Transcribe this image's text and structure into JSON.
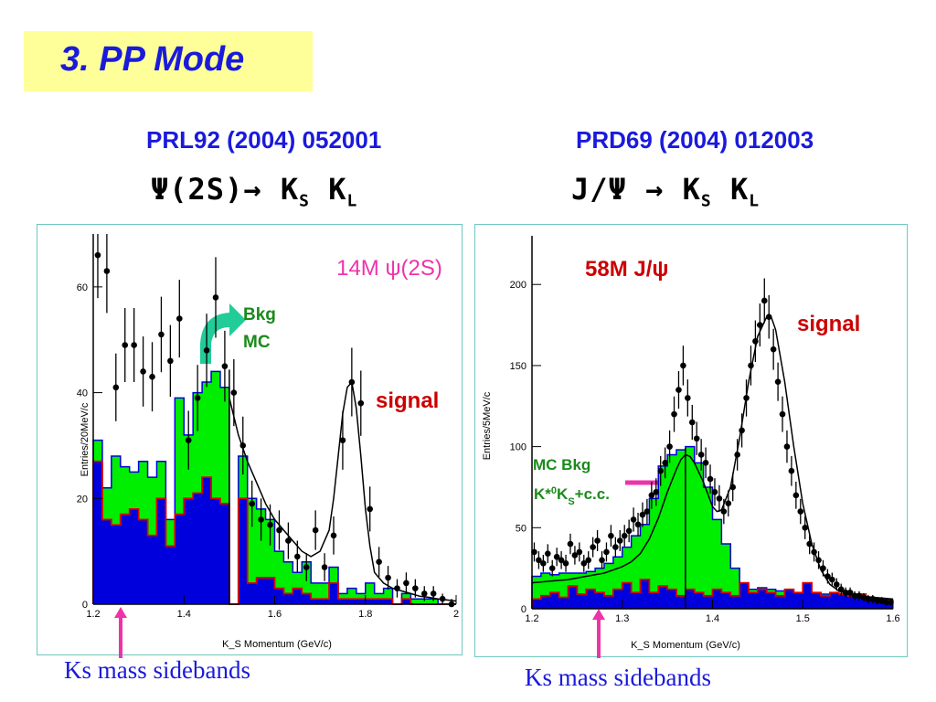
{
  "slide": {
    "title": "3. PP Mode",
    "left_ref": "PRL92 (2004) 052001",
    "right_ref": "PRD69 (2004) 012003",
    "left_decay": {
      "parent": "Ψ(2S)",
      "arrow": "→",
      "k1": "K",
      "s1": "S",
      "k2": "K",
      "s2": "L"
    },
    "right_decay": {
      "parent": "J/Ψ",
      "arrow": "→",
      "k1": "K",
      "s1": "S",
      "k2": "K",
      "s2": "L"
    },
    "left_sidebands": "Ks mass sidebands",
    "right_sidebands": "Ks mass sidebands"
  },
  "colors": {
    "title_bg": "#ffff99",
    "title_text": "#1a1adc",
    "green": "#00ee00",
    "blue": "#0000dd",
    "red": "#dd0000",
    "magenta": "#ee33aa",
    "teal_arrow": "#22cc99"
  },
  "chart_data": [
    {
      "type": "histogram",
      "xlabel": "K_S Momentum (GeV/c)",
      "ylabel": "Entries/20MeV/c",
      "xlim": [
        1.2,
        2.0
      ],
      "ylim": [
        0,
        70
      ],
      "xticks": [
        "1.2",
        "1.4",
        "1.6",
        "1.8",
        "2"
      ],
      "yticks": [
        "0",
        "20",
        "40",
        "60"
      ],
      "annotations": {
        "sample": "14M ψ(2S)",
        "bkg_line1": "Bkg",
        "bkg_line2": "MC",
        "signal": "signal"
      },
      "bin_edges": [
        1.2,
        1.22,
        1.24,
        1.26,
        1.28,
        1.3,
        1.32,
        1.34,
        1.36,
        1.38,
        1.4,
        1.42,
        1.44,
        1.46,
        1.48,
        1.5,
        1.52,
        1.54,
        1.56,
        1.58,
        1.6,
        1.62,
        1.64,
        1.66,
        1.68,
        1.7,
        1.72,
        1.74,
        1.76,
        1.78,
        1.8,
        1.82,
        1.84,
        1.86,
        1.88,
        1.9,
        1.92,
        1.94,
        1.96,
        1.98,
        2.0
      ],
      "green_mc": [
        31,
        22,
        28,
        26,
        25,
        27,
        24,
        27,
        16,
        39,
        32,
        40,
        42,
        44,
        41,
        0,
        28,
        20,
        18,
        16,
        10,
        8,
        6,
        8,
        4,
        4,
        7,
        2,
        3,
        2,
        4,
        2,
        3,
        0,
        2,
        1,
        1,
        1,
        0,
        0
      ],
      "blue_mc": [
        27,
        16,
        15,
        17,
        18,
        16,
        13,
        20,
        11,
        17,
        20,
        21,
        24,
        20,
        19,
        0,
        20,
        4,
        5,
        5,
        3,
        2,
        3,
        2,
        1,
        1,
        4,
        1,
        1,
        1,
        1,
        1,
        1,
        0,
        1,
        0,
        0,
        0,
        0,
        0
      ],
      "data_points": {
        "x": [
          1.21,
          1.23,
          1.25,
          1.27,
          1.29,
          1.31,
          1.33,
          1.35,
          1.37,
          1.39,
          1.41,
          1.43,
          1.45,
          1.47,
          1.49,
          1.51,
          1.53,
          1.55,
          1.57,
          1.59,
          1.61,
          1.63,
          1.65,
          1.67,
          1.69,
          1.71,
          1.73,
          1.75,
          1.77,
          1.79,
          1.81,
          1.83,
          1.85,
          1.87,
          1.89,
          1.91,
          1.93,
          1.95,
          1.97,
          1.99
        ],
        "y": [
          66,
          63,
          41,
          49,
          49,
          44,
          43,
          51,
          46,
          54,
          31,
          39,
          48,
          58,
          45,
          40,
          30,
          19,
          16,
          15,
          14,
          12,
          9,
          7,
          14,
          7,
          13,
          31,
          42,
          38,
          18,
          8,
          5,
          3,
          4,
          3,
          2,
          2,
          1,
          0
        ]
      },
      "fit_curve": {
        "x": [
          1.5,
          1.52,
          1.54,
          1.56,
          1.58,
          1.6,
          1.62,
          1.64,
          1.66,
          1.68,
          1.7,
          1.72,
          1.73,
          1.74,
          1.75,
          1.76,
          1.77,
          1.78,
          1.79,
          1.8,
          1.81,
          1.82,
          1.84,
          1.86,
          1.88,
          1.9,
          1.92,
          1.94,
          1.96,
          1.98,
          2.0
        ],
        "y": [
          39,
          32,
          27,
          23,
          19,
          16,
          14,
          12,
          10,
          9,
          10,
          14,
          20,
          28,
          36,
          41,
          42,
          37,
          28,
          18,
          11,
          6,
          4,
          3,
          2.5,
          2,
          1.5,
          1.3,
          1,
          0.8,
          0.6
        ]
      },
      "vertical_line_x": 1.5
    },
    {
      "type": "histogram",
      "xlabel": "K_S Momentum (GeV/c)",
      "ylabel": "Entries/5MeV/c",
      "xlim": [
        1.2,
        1.6
      ],
      "ylim": [
        0,
        230
      ],
      "xticks": [
        "1.2",
        "1.3",
        "1.4",
        "1.5",
        "1.6"
      ],
      "yticks": [
        "0",
        "50",
        "100",
        "150",
        "200"
      ],
      "annotations": {
        "sample": "58M J/ψ",
        "mc_line1": "MC Bkg",
        "mc_line2_main": "K*",
        "mc_line2_sup": "0",
        "mc_line2_k": "K",
        "mc_line2_sub": "S",
        "mc_line2_end": "+c.c.",
        "signal": "signal"
      },
      "bin_edges": [
        1.2,
        1.21,
        1.22,
        1.23,
        1.24,
        1.25,
        1.26,
        1.27,
        1.28,
        1.29,
        1.3,
        1.31,
        1.32,
        1.33,
        1.34,
        1.35,
        1.36,
        1.37,
        1.38,
        1.39,
        1.4,
        1.41,
        1.42,
        1.43,
        1.44,
        1.45,
        1.46,
        1.47,
        1.48,
        1.49,
        1.5,
        1.51,
        1.52,
        1.53,
        1.54,
        1.55,
        1.56,
        1.57,
        1.58,
        1.59,
        1.6
      ],
      "green_mc": [
        20,
        22,
        21,
        22,
        22,
        22,
        23,
        25,
        28,
        32,
        38,
        45,
        52,
        68,
        88,
        95,
        98,
        100,
        90,
        75,
        55,
        40,
        25,
        14,
        12,
        13,
        12,
        11,
        11,
        10,
        11,
        10,
        9,
        10,
        8,
        8,
        7,
        7,
        6,
        6
      ],
      "blue_mc": [
        6,
        8,
        10,
        7,
        14,
        9,
        12,
        10,
        8,
        12,
        16,
        10,
        18,
        10,
        14,
        12,
        8,
        12,
        10,
        8,
        12,
        10,
        8,
        16,
        10,
        12,
        10,
        8,
        12,
        10,
        16,
        10,
        8,
        10,
        9,
        8,
        9,
        6,
        6,
        5
      ],
      "data_points": {
        "x": [
          1.2025,
          1.2075,
          1.2125,
          1.2175,
          1.2225,
          1.2275,
          1.2325,
          1.2375,
          1.2425,
          1.2475,
          1.2525,
          1.2575,
          1.2625,
          1.2675,
          1.2725,
          1.2775,
          1.2825,
          1.2875,
          1.2925,
          1.2975,
          1.3025,
          1.3075,
          1.3125,
          1.3175,
          1.3225,
          1.3275,
          1.3325,
          1.3375,
          1.3425,
          1.3475,
          1.3525,
          1.3575,
          1.3625,
          1.3675,
          1.3725,
          1.3775,
          1.3825,
          1.3875,
          1.3925,
          1.3975,
          1.4025,
          1.4075,
          1.4125,
          1.4175,
          1.4225,
          1.4275,
          1.4325,
          1.4375,
          1.4425,
          1.4475,
          1.4525,
          1.4575,
          1.4625,
          1.4675,
          1.4725,
          1.4775,
          1.4825,
          1.4875,
          1.4925,
          1.4975,
          1.5025,
          1.5075,
          1.5125,
          1.5175,
          1.5225,
          1.5275,
          1.5325,
          1.5375,
          1.5425,
          1.5475,
          1.5525,
          1.5575,
          1.5625,
          1.5675,
          1.5725,
          1.5775,
          1.5825,
          1.5875,
          1.5925,
          1.5975
        ],
        "y": [
          35,
          30,
          28,
          34,
          25,
          32,
          30,
          28,
          40,
          33,
          35,
          28,
          30,
          38,
          42,
          30,
          35,
          45,
          38,
          42,
          45,
          48,
          55,
          52,
          58,
          60,
          70,
          72,
          85,
          90,
          100,
          120,
          135,
          150,
          130,
          115,
          105,
          95,
          90,
          80,
          72,
          68,
          60,
          65,
          75,
          95,
          110,
          130,
          150,
          165,
          175,
          190,
          180,
          160,
          140,
          120,
          100,
          85,
          70,
          60,
          50,
          40,
          35,
          30,
          25,
          20,
          18,
          15,
          12,
          10,
          10,
          8,
          8,
          7,
          6,
          6,
          5,
          5,
          4,
          4
        ]
      },
      "fit_curve": {
        "x": [
          1.2,
          1.22,
          1.24,
          1.26,
          1.28,
          1.3,
          1.31,
          1.32,
          1.33,
          1.34,
          1.35,
          1.36,
          1.365,
          1.37,
          1.375,
          1.38,
          1.39,
          1.4,
          1.405,
          1.41,
          1.42,
          1.43,
          1.44,
          1.45,
          1.46,
          1.465,
          1.47,
          1.48,
          1.49,
          1.5,
          1.51,
          1.52,
          1.53,
          1.54,
          1.55,
          1.56,
          1.58,
          1.6
        ],
        "y": [
          16,
          17,
          18,
          20,
          22,
          26,
          29,
          34,
          43,
          56,
          72,
          86,
          92,
          95,
          94,
          90,
          78,
          63,
          60,
          61,
          75,
          105,
          140,
          168,
          180,
          180,
          172,
          140,
          100,
          65,
          40,
          24,
          15,
          11,
          9,
          8,
          7,
          6
        ]
      },
      "vertical_line_x": 1.37
    }
  ]
}
